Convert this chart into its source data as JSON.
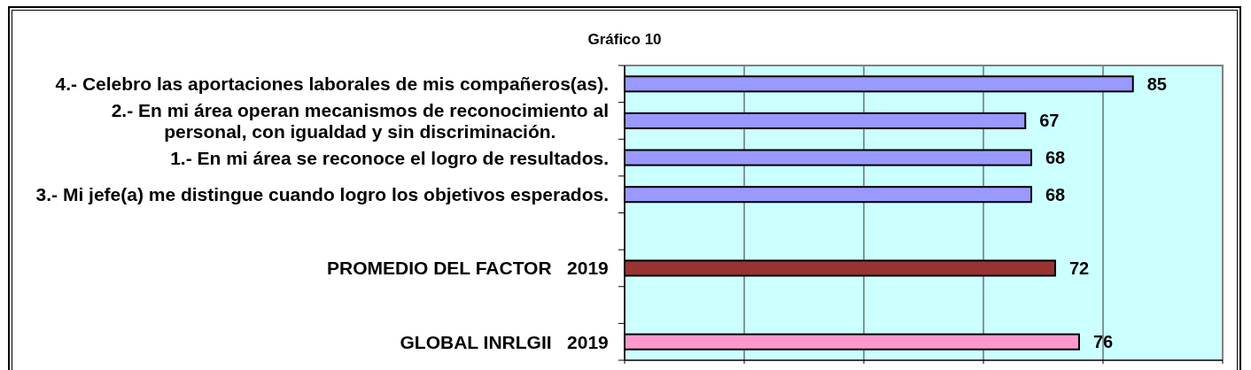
{
  "chart_data": {
    "type": "bar",
    "orientation": "horizontal",
    "title": "Gráfico 10",
    "categories": [
      "4.- Celebro las aportaciones laborales de mis compañeros(as).",
      "2.- En mi área operan mecanismos de reconocimiento al\npersonal, con igualdad y sin discriminación.",
      "1.- En mi área se reconoce el logro de resultados.",
      "3.- Mi jefe(a) me distingue cuando logro los objetivos esperados.",
      null,
      "PROMEDIO DEL FACTOR   2019",
      null,
      "GLOBAL INRLGII   2019"
    ],
    "values": [
      85,
      67,
      68,
      68,
      null,
      72,
      null,
      76
    ],
    "colors": [
      "#9999ff",
      "#9999ff",
      "#9999ff",
      "#9999ff",
      null,
      "#993333",
      null,
      "#ff99cc"
    ],
    "xlim": [
      0,
      100
    ],
    "xticks": [
      {
        "value": 0,
        "label": null
      },
      {
        "value": 20,
        "label": null
      },
      {
        "value": 40,
        "label": null
      },
      {
        "value": 60,
        "label": null
      },
      {
        "value": 80,
        "label": null
      },
      {
        "value": 100,
        "label": null
      }
    ],
    "grid": "x",
    "tick_labels": "y",
    "data_labels": true
  }
}
